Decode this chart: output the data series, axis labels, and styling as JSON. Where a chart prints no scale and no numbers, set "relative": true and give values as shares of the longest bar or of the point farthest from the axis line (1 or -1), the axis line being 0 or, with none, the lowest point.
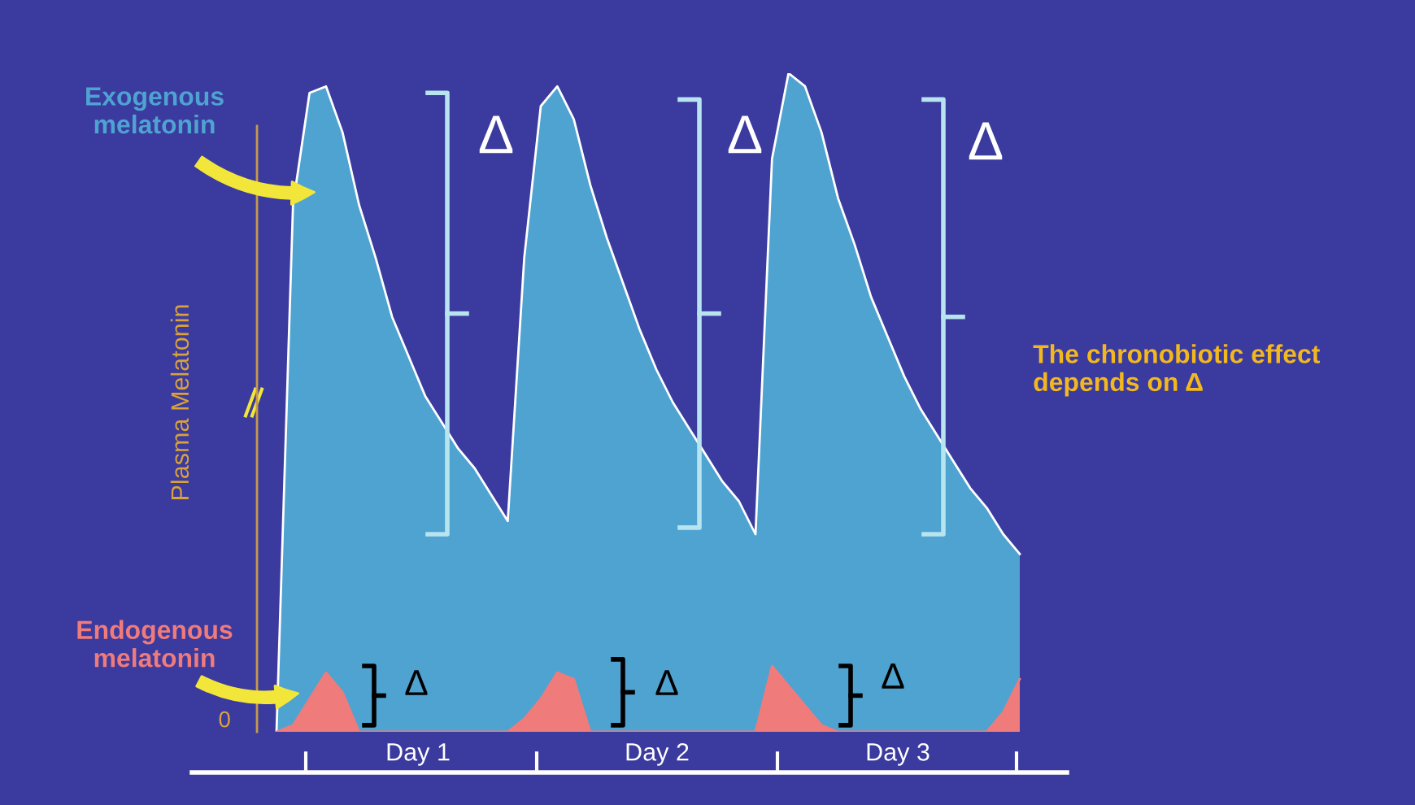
{
  "chart_data": {
    "type": "area",
    "relative": true,
    "ylabel": "Plasma Melatonin",
    "legend": false,
    "grid": false,
    "categories": [
      null,
      null,
      null,
      null,
      null,
      null,
      null,
      null,
      null,
      null,
      null,
      null,
      null,
      null,
      null,
      null,
      null,
      null,
      null,
      null,
      null,
      null,
      null,
      null,
      null,
      null,
      null,
      null,
      null,
      null,
      null,
      null,
      null,
      null,
      null,
      null,
      null,
      null,
      null,
      null,
      null,
      null,
      null,
      null,
      null,
      null
    ],
    "series": [
      {
        "name": "Exogenous melatonin",
        "color": "#4fa3d1",
        "values": [
          0,
          0.8,
          0.97,
          0.98,
          0.91,
          0.8,
          0.72,
          0.63,
          0.57,
          0.51,
          0.47,
          0.43,
          0.4,
          0.36,
          0.32,
          0.72,
          0.95,
          0.98,
          0.93,
          0.83,
          0.75,
          0.68,
          0.61,
          0.55,
          0.5,
          0.46,
          0.42,
          0.38,
          0.35,
          0.3,
          0.87,
          1.0,
          0.98,
          0.91,
          0.81,
          0.74,
          0.66,
          0.6,
          0.54,
          0.49,
          0.45,
          0.41,
          0.37,
          0.34,
          0.3,
          0.27
        ]
      },
      {
        "name": "Endogenous melatonin",
        "color": "#f07b7b",
        "values": [
          0,
          0.01,
          0.05,
          0.09,
          0.06,
          0,
          0,
          0,
          0,
          0,
          0,
          0,
          0,
          0,
          0,
          0.02,
          0.05,
          0.09,
          0.08,
          0,
          0,
          0,
          0,
          0,
          0,
          0,
          0,
          0,
          0,
          0,
          0.1,
          0.07,
          0.04,
          0.01,
          0,
          0,
          0,
          0,
          0,
          0,
          0,
          0,
          0,
          0,
          0.03,
          0.08
        ]
      }
    ],
    "annotations": [
      "0",
      "Δ",
      "Δ",
      "Δ",
      "Δ",
      "Δ",
      "Δ",
      "The chronobiotic effect depends on Δ",
      "Day 1",
      "Day 2",
      "Day 3"
    ]
  }
}
